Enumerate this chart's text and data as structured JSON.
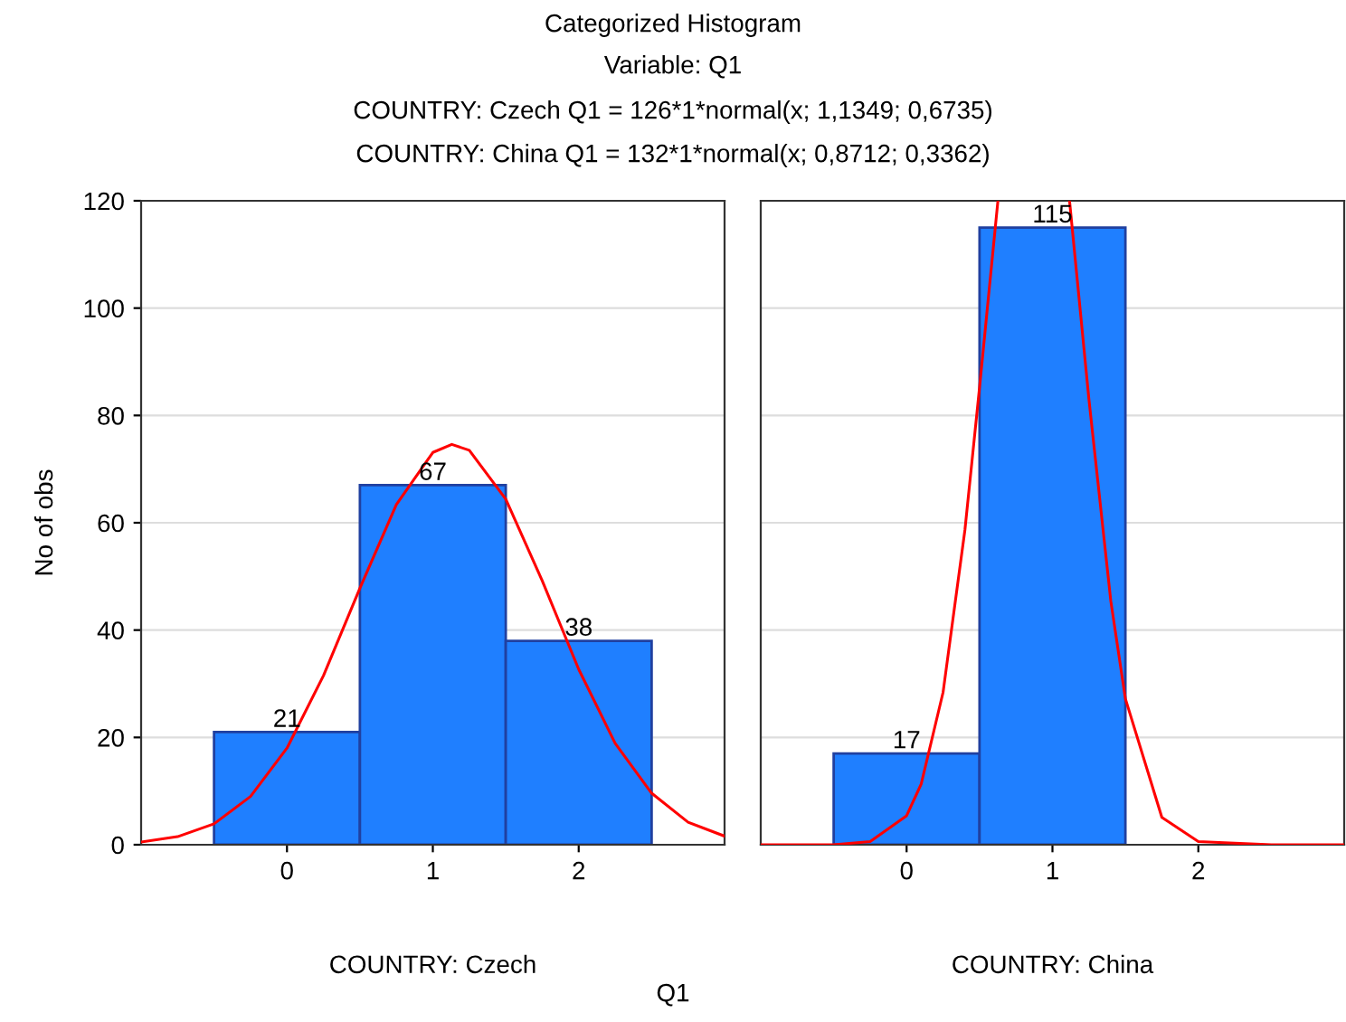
{
  "chart_data": [
    {
      "type": "histogram",
      "title": "Categorized Histogram",
      "subtitle": "Variable: Q1",
      "annotations": [
        "COUNTRY: Czech Q1 = 126*1*normal(x; 1,1349; 0,6735)",
        "COUNTRY: China Q1 = 132*1*normal(x; 0,8712; 0,3362)",
        "Q1"
      ],
      "xlabel": "COUNTRY: Czech",
      "ylabel": "No of obs",
      "bins": [
        -0.5,
        0.5,
        1.5,
        2.5
      ],
      "values": [
        21,
        67,
        38
      ],
      "color": "#1f7fff",
      "value_labels": [
        "21",
        "67",
        "38"
      ],
      "series": [
        {
          "type": "line",
          "color": "#ff0000",
          "x": [
            -1,
            -0.75,
            -0.5,
            -0.25,
            0,
            0.25,
            0.5,
            0.75,
            1,
            1.13,
            1.25,
            1.5,
            1.75,
            2,
            2.25,
            2.5,
            2.75,
            3
          ],
          "values": [
            0.5,
            1.5,
            3.9,
            9,
            18,
            31.5,
            47.8,
            63.4,
            73.1,
            74.6,
            73.5,
            64.4,
            49.2,
            32.7,
            18.9,
            9.6,
            4.2,
            1.6
          ]
        }
      ],
      "xlim": [
        -1,
        3
      ],
      "xticks": [
        0,
        1,
        2
      ],
      "ylim": [
        0,
        120
      ],
      "yticks": [
        0,
        20,
        40,
        60,
        80,
        100,
        120
      ],
      "grid": "y"
    },
    {
      "type": "histogram",
      "xlabel": "COUNTRY: China",
      "bins": [
        -0.5,
        0.5,
        1.5
      ],
      "values": [
        17,
        115
      ],
      "color": "#1f7fff",
      "value_labels": [
        "17",
        "115"
      ],
      "series": [
        {
          "type": "line",
          "color": "#ff0000",
          "x": [
            -1,
            -0.5,
            -0.25,
            0,
            0.1,
            0.25,
            0.4,
            0.5,
            0.626,
            0.87,
            1.117,
            1.25,
            1.4,
            1.5,
            1.75,
            2,
            2.5,
            3
          ],
          "values": [
            0,
            0,
            0.6,
            5.4,
            11.3,
            28.4,
            58.7,
            85.2,
            120,
            null,
            120,
            83,
            45.4,
            27.2,
            5.1,
            0.6,
            0,
            0
          ]
        }
      ],
      "xlim": [
        -1,
        3
      ],
      "xticks": [
        0,
        1,
        2
      ],
      "ylim": [
        0,
        120
      ],
      "yticks": [
        0,
        20,
        40,
        60,
        80,
        100,
        120
      ],
      "grid": "y",
      "tick_labels": "x"
    }
  ]
}
